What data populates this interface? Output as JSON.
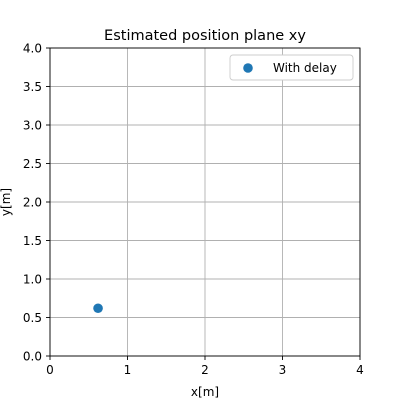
{
  "chart_data": {
    "type": "scatter",
    "title": "Estimated position plane xy",
    "xlabel": "x[m]",
    "ylabel": "y[m]",
    "xlim": [
      0,
      4
    ],
    "ylim": [
      0,
      4
    ],
    "xticks": [
      0,
      1,
      2,
      3,
      4
    ],
    "xtick_labels": [
      "0",
      "1",
      "2",
      "3",
      "4"
    ],
    "yticks": [
      0,
      0.5,
      1.0,
      1.5,
      2.0,
      2.5,
      3.0,
      3.5,
      4.0
    ],
    "ytick_labels": [
      "0.0",
      "0.5",
      "1.0",
      "1.5",
      "2.0",
      "2.5",
      "3.0",
      "3.5",
      "4.0"
    ],
    "grid": true,
    "legend_position": "top-right",
    "series": [
      {
        "name": "With delay",
        "color": "#1f77b4",
        "points": [
          {
            "x": 0.62,
            "y": 0.62
          }
        ]
      }
    ]
  }
}
